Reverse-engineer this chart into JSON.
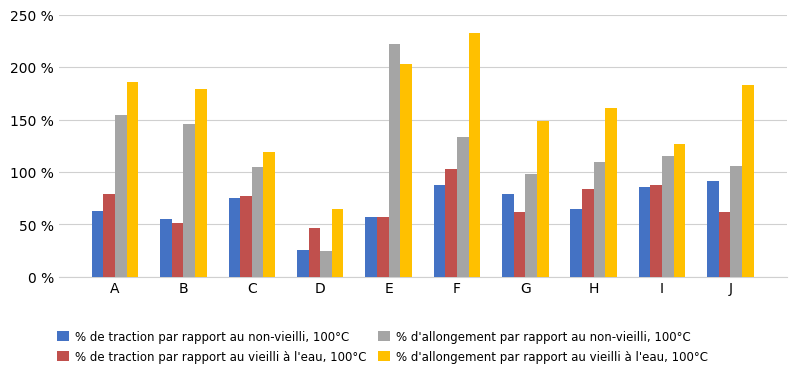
{
  "categories": [
    "A",
    "B",
    "C",
    "D",
    "E",
    "F",
    "G",
    "H",
    "I",
    "J"
  ],
  "series": {
    "traction_non_vieilli": [
      63,
      55,
      75,
      26,
      57,
      88,
      79,
      65,
      86,
      91
    ],
    "traction_vieilli_eau": [
      79,
      51,
      77,
      47,
      57,
      103,
      62,
      84,
      88,
      62
    ],
    "allongement_non_vieilli": [
      154,
      146,
      105,
      25,
      222,
      133,
      98,
      110,
      115,
      106
    ],
    "allongement_vieilli_eau": [
      186,
      179,
      119,
      65,
      203,
      233,
      149,
      161,
      127,
      183
    ]
  },
  "colors": {
    "traction_non_vieilli": "#4472C4",
    "traction_vieilli_eau": "#C0504D",
    "allongement_non_vieilli": "#A5A5A5",
    "allongement_vieilli_eau": "#FFC000"
  },
  "legend_labels": [
    "% de traction par rapport au non-vieilli, 100°C",
    "% de traction par rapport au vieilli à l'eau, 100°C",
    "% d'allongement par rapport au non-vieilli, 100°C",
    "% d'allongement par rapport au vieilli à l'eau, 100°C"
  ],
  "series_order": [
    "traction_non_vieilli",
    "traction_vieilli_eau",
    "allongement_non_vieilli",
    "allongement_vieilli_eau"
  ],
  "ylim": [
    0,
    250
  ],
  "yticks": [
    0,
    50,
    100,
    150,
    200,
    250
  ],
  "ytick_labels": [
    "0 %",
    "50 %",
    "100 %",
    "150 %",
    "200 %",
    "250 %"
  ],
  "bar_width": 0.17,
  "background_color": "#ffffff",
  "grid_color": "#d0d0d0",
  "figsize": [
    8.0,
    3.64
  ],
  "dpi": 100
}
